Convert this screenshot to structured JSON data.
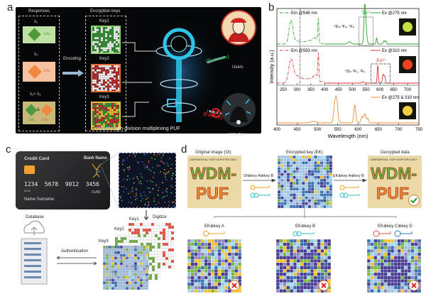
{
  "panel_labels": {
    "a": "a",
    "b": "b",
    "c": "c",
    "d": "d"
  },
  "panel_a": {
    "responses_title": "Responses",
    "encryption_title": "Encryption keys",
    "lambda1": "λ₁",
    "lambda2": "λ₂",
    "lambda12": "λ₁+ λ₂",
    "ln1": "Ln₁",
    "ln2": "Ln₂",
    "amp": "&",
    "encoding": "Encoding",
    "keys": [
      "Key1",
      "Key2",
      "Key3"
    ],
    "success": "(Success)",
    "failure": "(Failure)",
    "users": "Users",
    "intruder": "Intruder",
    "caption": "Wavelength-division multiplexing PUF",
    "colors": {
      "green": "#1e8a1e",
      "red": "#b01818",
      "yellow": "#e8c020",
      "success": "#1f9a3a",
      "failure": "#d02020",
      "glow": "#2fc4e8"
    }
  },
  "chart_data": {
    "type": "line",
    "xlabel": "Wavelength (nm)",
    "ylabel": "Intensity (a.u.)",
    "top_axis": {
      "range": [
        227,
        741
      ],
      "ticks": [
        250,
        300,
        350,
        400,
        450,
        500,
        550,
        600,
        650,
        700
      ]
    },
    "bottom_axis": {
      "range": [
        400,
        750
      ],
      "ticks": [
        400,
        450,
        500,
        550,
        600,
        650,
        700,
        750
      ]
    },
    "grid": false,
    "panels": [
      {
        "ion": "Tb³⁺",
        "transition": "⁵D₄-⁷F₆, ⁷F₅",
        "series": [
          {
            "name": "Em @548 nm",
            "style": "dash-dot",
            "color": "#2aa02a",
            "peaks": [
              [
                278,
                0.85,
                7
              ],
              [
                300,
                0.1,
                12
              ],
              [
                345,
                0.12,
                20
              ],
              [
                377,
                0.85,
                2
              ],
              [
                365,
                0.15,
                8
              ]
            ]
          },
          {
            "name": "Ex @275 nm",
            "style": "solid",
            "color": "#2aa02a",
            "peaks": [
              [
                490,
                0.08,
                6
              ],
              [
                545,
                1.0,
                3
              ],
              [
                548,
                0.6,
                4
              ],
              [
                588,
                0.22,
                2
              ],
              [
                615,
                0.12,
                3
              ],
              [
                622,
                0.1,
                2
              ]
            ]
          }
        ]
      },
      {
        "ion": "Eu³⁺",
        "transition": "⁵D₀-⁷F₁, ⁷F₂",
        "series": [
          {
            "name": "Em @593 nm",
            "style": "dash-dot",
            "color": "#e03030",
            "peaks": [
              [
                278,
                0.8,
                8
              ],
              [
                300,
                0.2,
                12
              ],
              [
                340,
                0.15,
                25
              ],
              [
                377,
                0.9,
                2
              ],
              [
                367,
                0.2,
                8
              ],
              [
                395,
                0.05,
                4
              ]
            ]
          },
          {
            "name": "Ex @310 nm",
            "style": "solid",
            "color": "#e03030",
            "peaks": [
              [
                538,
                0.05,
                3
              ],
              [
                592,
                0.6,
                2
              ],
              [
                612,
                0.3,
                3
              ],
              [
                618,
                0.2,
                2
              ]
            ]
          }
        ]
      },
      {
        "series": [
          {
            "name": "Ex @275 & 310 nm",
            "style": "solid",
            "color": "#f08a30",
            "peaks": [
              [
                490,
                0.06,
                7
              ],
              [
                542,
                0.55,
                2.5
              ],
              [
                547,
                0.95,
                3
              ],
              [
                592,
                0.7,
                2.5
              ],
              [
                610,
                0.25,
                2.5
              ],
              [
                617,
                0.35,
                2.5
              ],
              [
                624,
                0.18,
                2
              ]
            ]
          }
        ]
      }
    ]
  },
  "panel_c": {
    "card_title": "Credit Card",
    "bank_name": "Bank Name",
    "card_number": "1234  5678  9012  3456",
    "card_small": "0123",
    "expiry": "01/80",
    "holder": "Name Surname",
    "database": "Database",
    "authentication": "Authentication",
    "digitize": "Digitize",
    "keys": [
      "Key1",
      "Key2",
      "Key3"
    ]
  },
  "panel_d": {
    "original": "Original image (OI)",
    "encrypted": "Encrypted key (EK)",
    "decrypted": "Decrypted data",
    "op_encrypt": "OI⊕key A⊕key B",
    "op_decrypt": "EK⊕key A⊕key B",
    "op_a": "EK⊕key A",
    "op_b": "EK⊕key B",
    "op_cd": "EK⊕key C⊕key D",
    "poster_top": "CONFIDENTIAL: FOR YOUR EYES ONLY",
    "poster_word1": "WDM-",
    "poster_word2": "PUF",
    "palette": [
      "#9fc3e0",
      "#3a6fb0",
      "#4a3d93",
      "#7ab648",
      "#f2c230",
      "#a8dbe8",
      "#8f88c0"
    ],
    "key_colors": {
      "a": "#f0a020",
      "b": "#38c0c8",
      "c": "#e85040",
      "d": "#2a7ac0"
    }
  }
}
